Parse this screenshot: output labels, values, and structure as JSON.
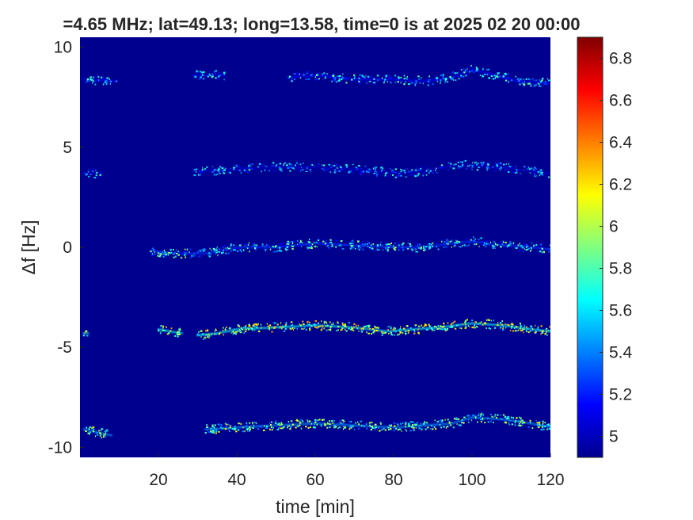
{
  "chart_data": {
    "type": "heatmap",
    "title": "=4.65 MHz;  lat=49.13; long=13.58, time=0 is at 2025 02 20 00:00",
    "xlabel": "time [min]",
    "ylabel": "Δf [Hz]",
    "xlim": [
      0,
      120
    ],
    "ylim": [
      -10.5,
      10.5
    ],
    "x_ticks": [
      20,
      40,
      60,
      80,
      100,
      120
    ],
    "y_ticks": [
      -10,
      -5,
      0,
      5,
      10
    ],
    "background_color": "#00008f",
    "colorbar": {
      "range": [
        4.9,
        6.9
      ],
      "ticks": [
        5,
        5.2,
        5.4,
        5.6,
        5.8,
        6,
        6.2,
        6.4,
        6.6,
        6.8
      ],
      "colormap": "jet"
    },
    "series": [
      {
        "segments": [
          [
            1,
            9.5
          ],
          [
            29,
            37
          ],
          [
            53,
            120
          ]
        ],
        "trace": [
          [
            1,
            8.4
          ],
          [
            8,
            8.3
          ],
          [
            30,
            8.6
          ],
          [
            37,
            8.6
          ],
          [
            53,
            8.5
          ],
          [
            60,
            8.6
          ],
          [
            70,
            8.4
          ],
          [
            80,
            8.4
          ],
          [
            88,
            8.3
          ],
          [
            95,
            8.5
          ],
          [
            100,
            8.9
          ],
          [
            106,
            8.6
          ],
          [
            112,
            8.3
          ],
          [
            120,
            8.2
          ]
        ],
        "intensity": 5.5
      },
      {
        "segments": [
          [
            1,
            5.5
          ],
          [
            29,
            120
          ]
        ],
        "trace": [
          [
            1,
            3.7
          ],
          [
            5,
            3.7
          ],
          [
            30,
            3.8
          ],
          [
            40,
            3.9
          ],
          [
            50,
            4.0
          ],
          [
            60,
            4.0
          ],
          [
            70,
            3.9
          ],
          [
            80,
            3.7
          ],
          [
            88,
            3.8
          ],
          [
            95,
            4.1
          ],
          [
            100,
            4.1
          ],
          [
            108,
            4.0
          ],
          [
            115,
            3.8
          ],
          [
            120,
            3.7
          ]
        ],
        "intensity": 5.4
      },
      {
        "segments": [
          [
            18,
            120
          ]
        ],
        "trace": [
          [
            18,
            -0.2
          ],
          [
            25,
            -0.3
          ],
          [
            32,
            -0.3
          ],
          [
            40,
            0.0
          ],
          [
            50,
            0.0
          ],
          [
            60,
            0.2
          ],
          [
            70,
            0.1
          ],
          [
            80,
            0.0
          ],
          [
            88,
            0.0
          ],
          [
            95,
            0.2
          ],
          [
            100,
            0.3
          ],
          [
            108,
            0.1
          ],
          [
            115,
            0.0
          ],
          [
            120,
            -0.1
          ]
        ],
        "intensity": 5.6
      },
      {
        "segments": [
          [
            1,
            2
          ],
          [
            20,
            26
          ],
          [
            30,
            120
          ]
        ],
        "trace": [
          [
            1,
            -4.3
          ],
          [
            20,
            -4.1
          ],
          [
            26,
            -4.3
          ],
          [
            30,
            -4.4
          ],
          [
            35,
            -4.3
          ],
          [
            40,
            -4.1
          ],
          [
            50,
            -4.0
          ],
          [
            60,
            -3.9
          ],
          [
            70,
            -4.0
          ],
          [
            78,
            -4.2
          ],
          [
            85,
            -4.1
          ],
          [
            92,
            -4.0
          ],
          [
            100,
            -3.8
          ],
          [
            108,
            -3.9
          ],
          [
            115,
            -4.1
          ],
          [
            120,
            -4.2
          ]
        ],
        "intensity": 6.0
      },
      {
        "segments": [
          [
            1,
            8
          ],
          [
            32,
            120
          ]
        ],
        "trace": [
          [
            1,
            -9.1
          ],
          [
            8,
            -9.4
          ],
          [
            32,
            -9.1
          ],
          [
            40,
            -9.0
          ],
          [
            50,
            -8.9
          ],
          [
            60,
            -8.8
          ],
          [
            70,
            -8.9
          ],
          [
            80,
            -9.0
          ],
          [
            88,
            -8.9
          ],
          [
            95,
            -8.8
          ],
          [
            100,
            -8.5
          ],
          [
            108,
            -8.6
          ],
          [
            115,
            -8.8
          ],
          [
            120,
            -9.0
          ]
        ],
        "intensity": 5.8
      }
    ]
  }
}
